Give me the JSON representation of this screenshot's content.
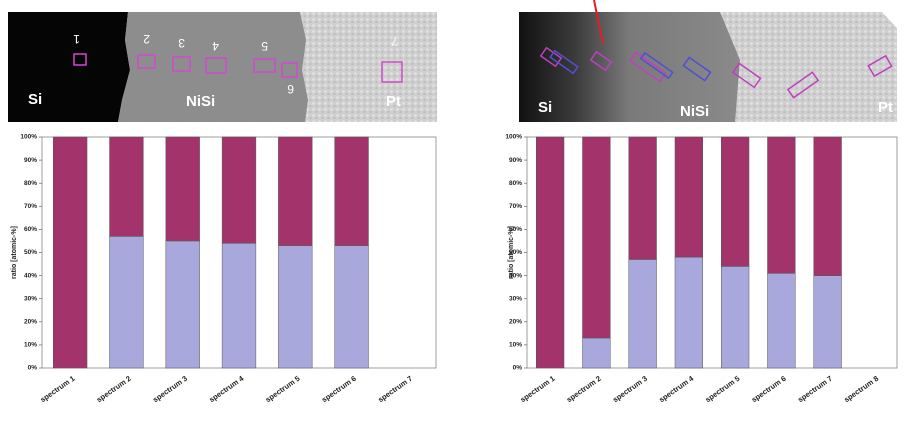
{
  "images": [
    {
      "labels": [
        "Si",
        "NiSi",
        "Pt"
      ],
      "markers": [
        "1",
        "2",
        "3",
        "4",
        "5",
        "6",
        "7"
      ]
    },
    {
      "labels": [
        "Si",
        "NiSi",
        "Pt"
      ]
    }
  ],
  "chart_data": [
    {
      "type": "bar",
      "stacked": true,
      "y_label": "ratio [atomic-%]",
      "categories": [
        "spectrum 1",
        "spectrum 2",
        "spectrum 3",
        "spectrum 4",
        "spectrum 5",
        "spectrum 6",
        "spectrum 7"
      ],
      "series": [
        {
          "color": "#a9a8dc",
          "values": [
            0,
            57,
            55,
            54,
            53,
            53,
            0
          ]
        },
        {
          "color": "#a3346b",
          "values": [
            100,
            43,
            45,
            46,
            47,
            47,
            0
          ]
        }
      ],
      "ylim": [
        0,
        100
      ],
      "yticks": [
        {
          "value": 0,
          "label": "0%"
        },
        {
          "value": 10,
          "label": "10%"
        },
        {
          "value": 20,
          "label": "20%"
        },
        {
          "value": 30,
          "label": "30%"
        },
        {
          "value": 40,
          "label": "40%"
        },
        {
          "value": 50,
          "label": "50%"
        },
        {
          "value": 60,
          "label": "60%"
        },
        {
          "value": 70,
          "label": "70%"
        },
        {
          "value": 80,
          "label": "80%"
        },
        {
          "value": 90,
          "label": "90%"
        },
        {
          "value": 100,
          "label": "100%"
        }
      ]
    },
    {
      "type": "bar",
      "stacked": true,
      "y_label": "ratio [atomic-%]",
      "categories": [
        "spectrum 1",
        "spectrum 2",
        "spectrum 3",
        "spectrum 4",
        "spectrum 5",
        "spectrum 6",
        "spectrum 7",
        "spectrum 8"
      ],
      "series": [
        {
          "color": "#a9a8dc",
          "values": [
            0,
            13,
            47,
            48,
            44,
            41,
            40,
            0
          ]
        },
        {
          "color": "#a3346b",
          "values": [
            100,
            87,
            53,
            52,
            56,
            59,
            60,
            0
          ]
        }
      ],
      "ylim": [
        0,
        100
      ],
      "yticks": [
        {
          "value": 0,
          "label": "0%"
        },
        {
          "value": 10,
          "label": "10%"
        },
        {
          "value": 20,
          "label": "20%"
        },
        {
          "value": 30,
          "label": "30%"
        },
        {
          "value": 40,
          "label": "40%"
        },
        {
          "value": 50,
          "label": "50%"
        },
        {
          "value": 60,
          "label": "60%"
        },
        {
          "value": 70,
          "label": "70%"
        },
        {
          "value": 80,
          "label": "80%"
        },
        {
          "value": 90,
          "label": "90%"
        },
        {
          "value": 100,
          "label": "100%"
        }
      ]
    }
  ]
}
